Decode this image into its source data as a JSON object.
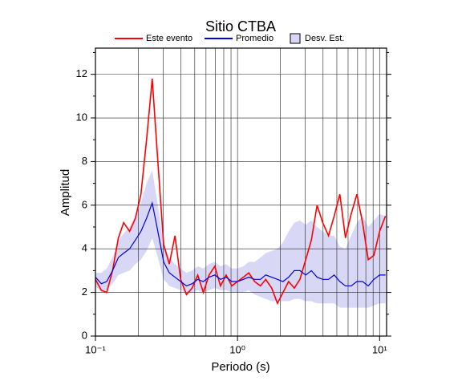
{
  "chart_data": {
    "type": "line",
    "title": "Sitio CTBA",
    "xlabel": "Periodo (s)",
    "ylabel": "Amplitud",
    "xscale": "log",
    "grid": true,
    "xlim": [
      0.1,
      11.2
    ],
    "ylim": [
      0,
      13.2
    ],
    "xticks": [
      {
        "value": 0.1,
        "label": "10⁻¹"
      },
      {
        "value": 1,
        "label": "10⁰"
      },
      {
        "value": 10,
        "label": "10¹"
      }
    ],
    "xminorticks": [
      0.2,
      0.3,
      0.4,
      0.5,
      0.6,
      0.7,
      0.8,
      0.9,
      2,
      3,
      4,
      5,
      6,
      7,
      8,
      9
    ],
    "yticks": [
      0,
      2,
      4,
      6,
      8,
      10,
      12
    ],
    "yminorticks": [
      1,
      3,
      5,
      7,
      9,
      11,
      13
    ],
    "x": [
      0.1,
      0.11,
      0.12,
      0.132,
      0.145,
      0.158,
      0.174,
      0.191,
      0.209,
      0.229,
      0.251,
      0.275,
      0.302,
      0.331,
      0.363,
      0.398,
      0.437,
      0.479,
      0.525,
      0.575,
      0.631,
      0.692,
      0.759,
      0.832,
      0.912,
      1.0,
      1.1,
      1.2,
      1.32,
      1.45,
      1.58,
      1.74,
      1.91,
      2.09,
      2.29,
      2.51,
      2.75,
      3.02,
      3.31,
      3.63,
      3.98,
      4.37,
      4.79,
      5.25,
      5.75,
      6.31,
      6.92,
      7.59,
      8.32,
      9.12,
      10.0,
      11.0
    ],
    "band": {
      "name": "Desv. Est.",
      "color": "#d8d8f6",
      "edge": "#9a9ad8",
      "upper": [
        2.9,
        2.9,
        3.1,
        3.6,
        4.4,
        4.7,
        5.0,
        5.5,
        6.1,
        7.0,
        7.6,
        6.0,
        4.2,
        3.6,
        3.3,
        3.1,
        2.9,
        3.0,
        3.2,
        3.1,
        3.3,
        3.4,
        3.2,
        3.3,
        3.1,
        3.1,
        3.2,
        3.4,
        3.4,
        3.6,
        3.8,
        3.9,
        4.0,
        4.3,
        4.8,
        5.2,
        5.3,
        5.1,
        5.3,
        5.0,
        4.8,
        4.6,
        4.6,
        4.1,
        4.0,
        4.6,
        5.2,
        5.5,
        5.0,
        5.3,
        5.6,
        5.5
      ],
      "lower": [
        2.3,
        2.0,
        2.1,
        2.4,
        2.8,
        2.9,
        3.0,
        3.3,
        3.5,
        3.9,
        4.5,
        3.6,
        2.6,
        2.3,
        2.2,
        2.1,
        2.0,
        2.0,
        2.1,
        2.0,
        2.1,
        2.2,
        2.1,
        2.1,
        2.0,
        2.0,
        2.0,
        2.1,
        1.9,
        1.8,
        1.7,
        1.6,
        1.6,
        1.6,
        1.6,
        1.7,
        1.7,
        1.6,
        1.6,
        1.5,
        1.5,
        1.5,
        1.5,
        1.3,
        1.3,
        1.3,
        1.3,
        1.3,
        1.3,
        1.4,
        1.5,
        1.5
      ]
    },
    "series": [
      {
        "name": "Este evento",
        "color": "#ff0000",
        "values": [
          2.6,
          2.1,
          2.0,
          3.0,
          4.5,
          5.2,
          4.8,
          5.4,
          6.5,
          9.0,
          11.8,
          8.0,
          4.2,
          3.3,
          4.6,
          2.6,
          1.9,
          2.2,
          2.8,
          2.0,
          2.8,
          3.2,
          2.3,
          2.8,
          2.3,
          2.5,
          2.7,
          2.9,
          2.5,
          2.3,
          2.6,
          2.2,
          1.5,
          2.0,
          2.5,
          2.2,
          2.6,
          3.5,
          4.4,
          6.0,
          5.2,
          4.6,
          5.5,
          6.5,
          4.5,
          5.6,
          6.5,
          5.2,
          3.5,
          3.7,
          4.8,
          5.5
        ]
      },
      {
        "name": "Promedio",
        "color": "#0000dd",
        "values": [
          2.7,
          2.4,
          2.5,
          3.0,
          3.6,
          3.8,
          4.0,
          4.4,
          4.8,
          5.4,
          6.1,
          4.8,
          3.4,
          2.9,
          2.7,
          2.5,
          2.3,
          2.4,
          2.6,
          2.5,
          2.7,
          2.8,
          2.6,
          2.7,
          2.5,
          2.5,
          2.6,
          2.7,
          2.6,
          2.6,
          2.8,
          2.7,
          2.6,
          2.5,
          2.7,
          3.0,
          3.0,
          2.8,
          3.0,
          2.7,
          2.6,
          2.6,
          2.8,
          2.5,
          2.3,
          2.3,
          2.5,
          2.5,
          2.3,
          2.6,
          2.8,
          2.8
        ]
      }
    ]
  }
}
